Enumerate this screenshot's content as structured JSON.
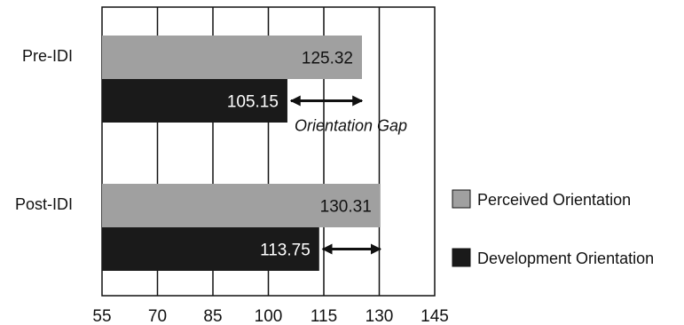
{
  "chart_data": {
    "type": "bar",
    "orientation": "horizontal",
    "categories": [
      "Pre-IDI",
      "Post-IDI"
    ],
    "series": [
      {
        "name": "Perceived Orientation",
        "values": [
          125.32,
          130.31
        ],
        "color": "#a0a0a0",
        "label_color": "#111111"
      },
      {
        "name": "Development Orientation",
        "values": [
          105.15,
          113.75
        ],
        "color": "#1a1a1a",
        "label_color": "#ffffff"
      }
    ],
    "value_labels": [
      [
        "125.32",
        "130.31"
      ],
      [
        "105.15",
        "113.75"
      ]
    ],
    "xlim": [
      55,
      145
    ],
    "xticks": [
      55,
      70,
      85,
      100,
      115,
      130,
      145
    ],
    "xtick_labels": [
      "55",
      "70",
      "85",
      "100",
      "115",
      "130",
      "145"
    ],
    "grid": true,
    "legend_position": "right",
    "annotations": [
      {
        "category_index": 0,
        "text": "Orientation Gap",
        "from": 105.15,
        "to": 125.32
      },
      {
        "category_index": 1,
        "text": "",
        "from": 113.75,
        "to": 130.31
      }
    ]
  }
}
